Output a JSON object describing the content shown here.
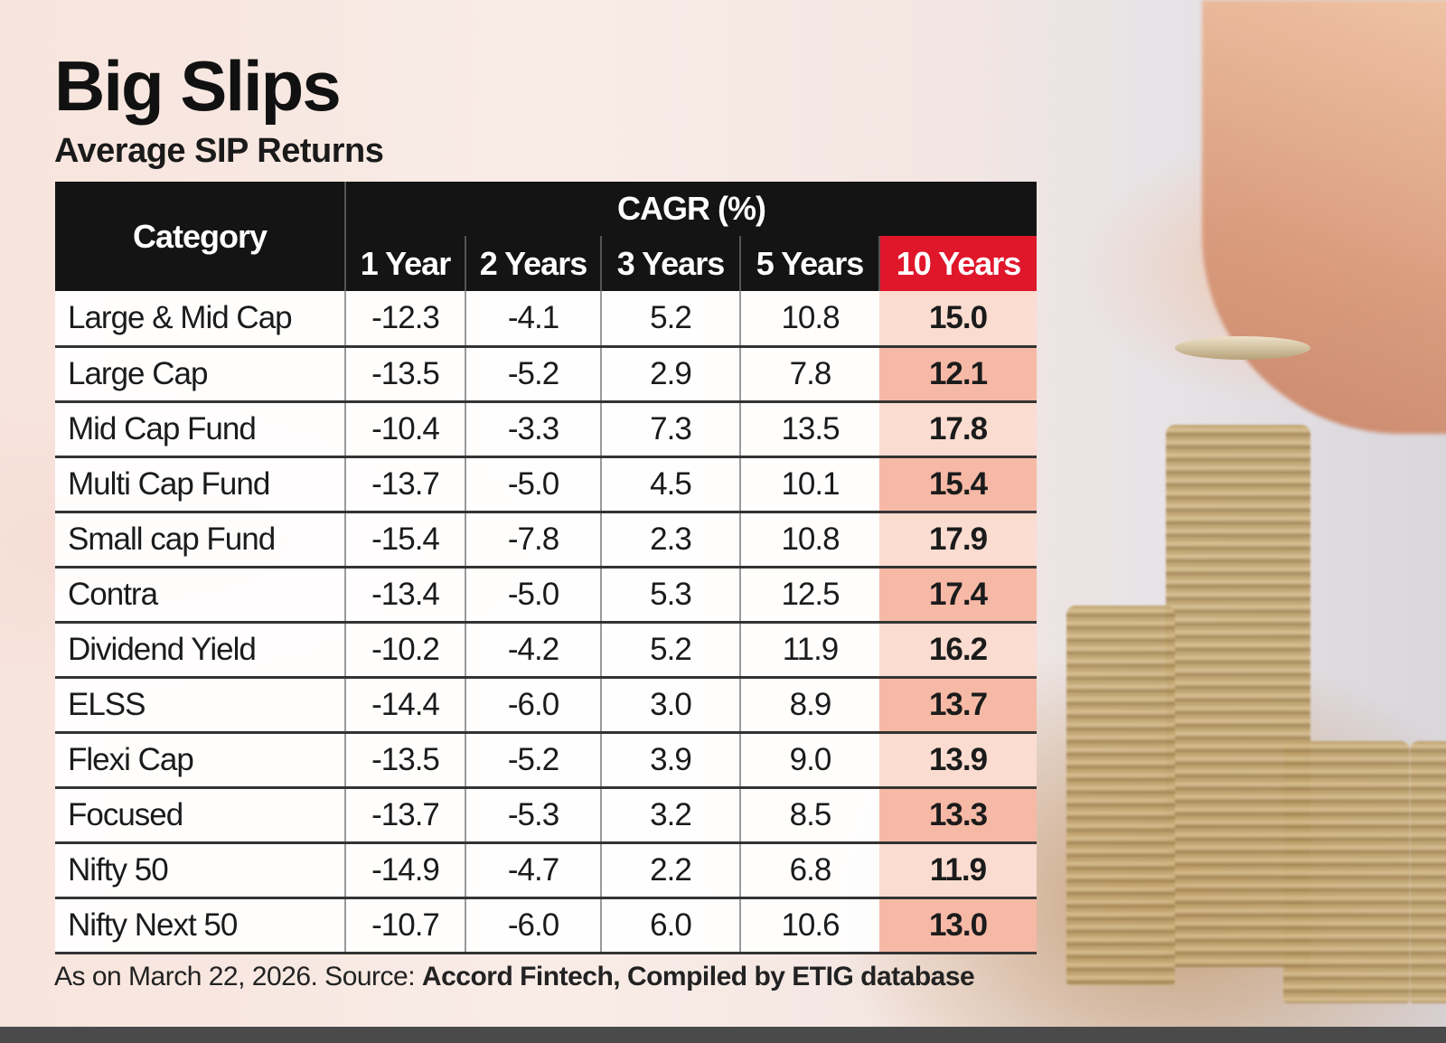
{
  "title": "Big Slips",
  "subtitle": "Average SIP Returns",
  "chart_data": {
    "type": "table",
    "title": "Big Slips",
    "subtitle": "Average SIP Returns",
    "header_category": "Category",
    "header_group": "CAGR (%)",
    "columns": [
      "1 Year",
      "2 Years",
      "3 Years",
      "5 Years",
      "10 Years"
    ],
    "highlight_column": "10 Years",
    "highlight_color": "#e0162b",
    "rows": [
      {
        "category": "Large & Mid Cap",
        "values": [
          "-12.3",
          "-4.1",
          "5.2",
          "10.8",
          "15.0"
        ]
      },
      {
        "category": "Large Cap",
        "values": [
          "-13.5",
          "-5.2",
          "2.9",
          "7.8",
          "12.1"
        ]
      },
      {
        "category": "Mid Cap Fund",
        "values": [
          "-10.4",
          "-3.3",
          "7.3",
          "13.5",
          "17.8"
        ]
      },
      {
        "category": "Multi Cap Fund",
        "values": [
          "-13.7",
          "-5.0",
          "4.5",
          "10.1",
          "15.4"
        ]
      },
      {
        "category": "Small cap Fund",
        "values": [
          "-15.4",
          "-7.8",
          "2.3",
          "10.8",
          "17.9"
        ]
      },
      {
        "category": "Contra",
        "values": [
          "-13.4",
          "-5.0",
          "5.3",
          "12.5",
          "17.4"
        ]
      },
      {
        "category": "Dividend Yield",
        "values": [
          "-10.2",
          "-4.2",
          "5.2",
          "11.9",
          "16.2"
        ]
      },
      {
        "category": "ELSS",
        "values": [
          "-14.4",
          "-6.0",
          "3.0",
          "8.9",
          "13.7"
        ]
      },
      {
        "category": "Flexi Cap",
        "values": [
          "-13.5",
          "-5.2",
          "3.9",
          "9.0",
          "13.9"
        ]
      },
      {
        "category": "Focused",
        "values": [
          "-13.7",
          "-5.3",
          "3.2",
          "8.5",
          "13.3"
        ]
      },
      {
        "category": "Nifty 50",
        "values": [
          "-14.9",
          "-4.7",
          "2.2",
          "6.8",
          "11.9"
        ]
      },
      {
        "category": "Nifty Next 50",
        "values": [
          "-10.7",
          "-6.0",
          "6.0",
          "10.6",
          "13.0"
        ]
      }
    ]
  },
  "footnote": {
    "prefix": "As on March 22, 2026. Source: ",
    "source": "Accord Fintech, Compiled by ETIG database"
  }
}
